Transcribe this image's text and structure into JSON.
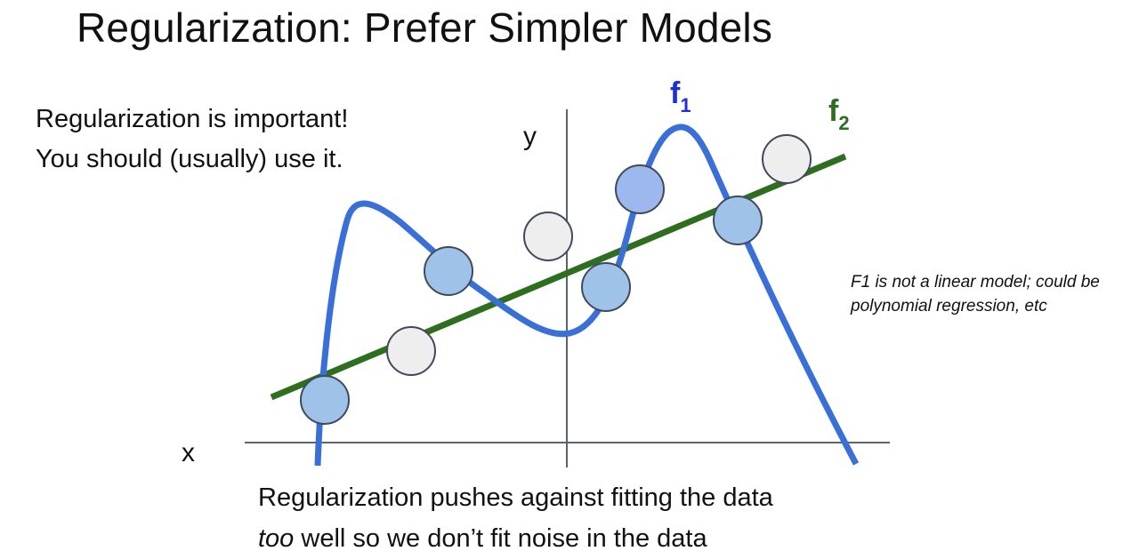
{
  "title": "Regularization: Prefer Simpler Models",
  "left_note": "Regularization is important! You should (usually) use it.",
  "side_note": "F1 is not a linear model; could be polynomial regression, etc",
  "bottom_note": {
    "line1": "Regularization pushes against fitting the data",
    "emph": "too",
    "rest": " well so we don’t fit noise in the data"
  },
  "diagram": {
    "axis_x_label": "x",
    "axis_y_label": "y",
    "curve_f1": {
      "letter": "f",
      "subscript": "1",
      "color": "#3a6fd8",
      "label_color": "#1f2fd6"
    },
    "line_f2": {
      "letter": "f",
      "subscript": "2",
      "color": "#2e6e1f",
      "label_color": "#2e6e1f"
    },
    "point_colors": {
      "fit": "#9fc3e8",
      "fit_highlight": "#9db8ef",
      "noise": "#eeeeee",
      "outline": "#3f4a5a"
    }
  }
}
